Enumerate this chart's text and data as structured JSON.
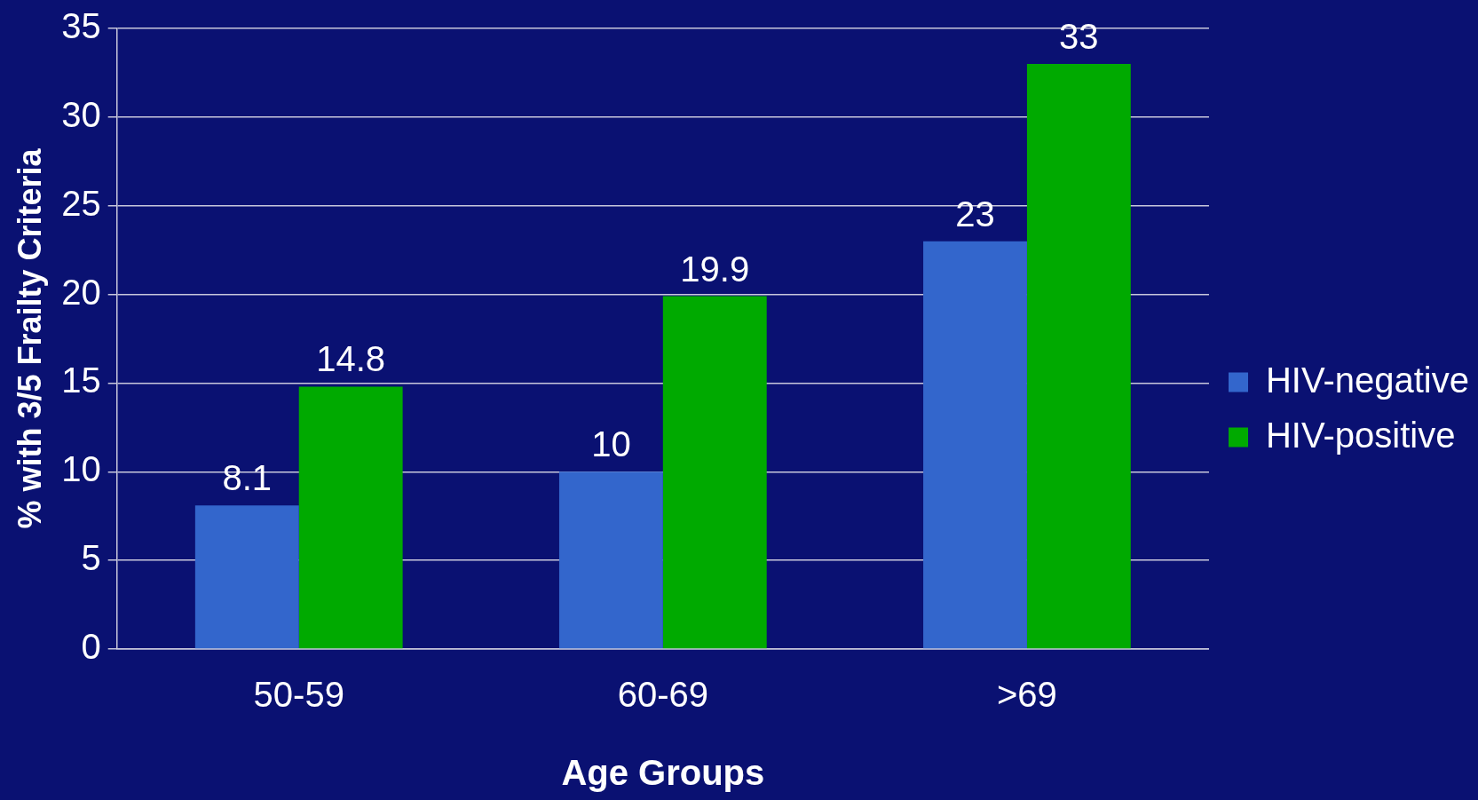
{
  "chart_data": {
    "type": "bar",
    "xlabel": "Age Groups",
    "ylabel": "% with 3/5 Frailty Criteria",
    "categories": [
      "50-59",
      "60-69",
      ">69"
    ],
    "series": [
      {
        "name": "HIV-negative",
        "color": "#3366cc",
        "values": [
          8.1,
          10,
          23
        ]
      },
      {
        "name": "HIV-positive",
        "color": "#00aa00",
        "values": [
          14.8,
          19.9,
          33
        ]
      }
    ],
    "ylim": [
      0,
      35
    ],
    "yticks": [
      0,
      5,
      10,
      15,
      20,
      25,
      30,
      35
    ],
    "grid": "y",
    "legend": "right",
    "data_labels": true
  }
}
